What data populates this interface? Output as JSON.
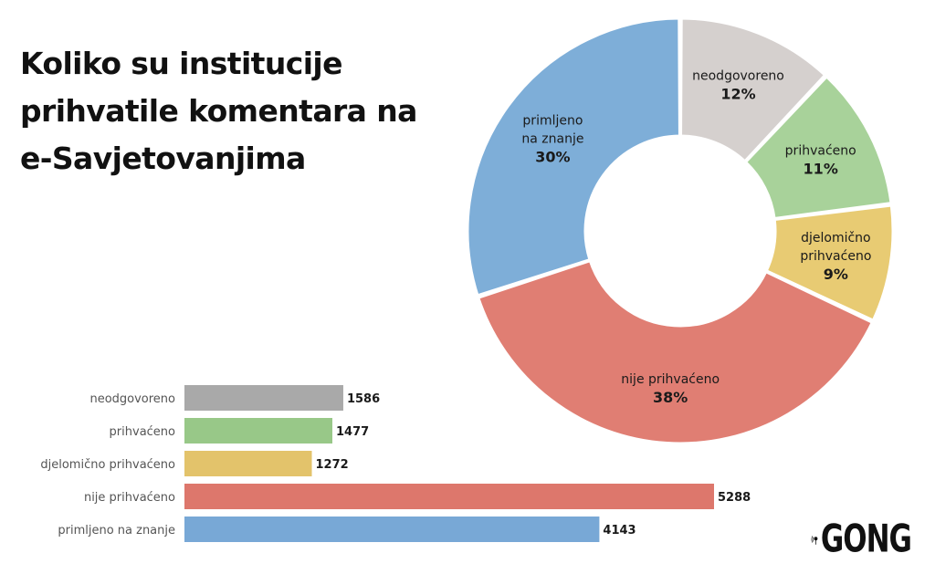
{
  "title_lines": [
    "Koliko su institucije",
    "prihvatile komentara na",
    "e-Savjetovanjima"
  ],
  "logo_text": "GONG",
  "chart_data": [
    {
      "type": "donut",
      "slices": [
        {
          "label_lines": [
            "neodgovoreno"
          ],
          "value_label": "12%",
          "value": 12,
          "color": "#d5d0ce"
        },
        {
          "label_lines": [
            "prihvaćeno"
          ],
          "value_label": "11%",
          "value": 11,
          "color": "#a8d29a"
        },
        {
          "label_lines": [
            "djelomično",
            "prihvaćeno"
          ],
          "value_label": "9%",
          "value": 9,
          "color": "#e8cb73"
        },
        {
          "label_lines": [
            "nije prihvaćeno"
          ],
          "value_label": "38%",
          "value": 38,
          "color": "#e07e73"
        },
        {
          "label_lines": [
            "primljeno",
            "na znanje"
          ],
          "value_label": "30%",
          "value": 30,
          "color": "#7eaed8"
        }
      ]
    },
    {
      "type": "bar",
      "orientation": "horizontal",
      "categories": [
        "neodgovoreno",
        "prihvaćeno",
        "djelomično prihvaćeno",
        "nije prihvaćeno",
        "primljeno na znanje"
      ],
      "values": [
        1586,
        1477,
        1272,
        5288,
        4143
      ],
      "colors": [
        "#a9a9a9",
        "#98c888",
        "#e3c36b",
        "#dd776c",
        "#78a8d6"
      ]
    }
  ]
}
